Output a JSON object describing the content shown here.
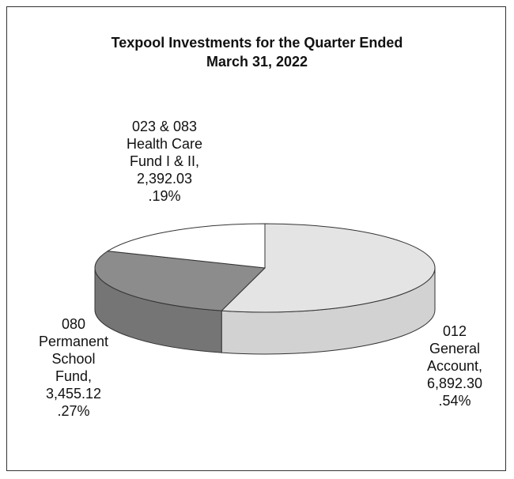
{
  "chart_data": {
    "type": "pie3d",
    "title": "Texpool Investments for the Quarter Ended",
    "subtitle": "March 31, 2022",
    "categories": [
      "012 General Account,",
      "080 Permanent School Fund,",
      "023 & 083 Health Care Fund I & II,"
    ],
    "values": [
      6892.3,
      3455.12,
      2392.03
    ],
    "value_labels": [
      "6,892.30",
      "3,455.12",
      "2,392.03"
    ],
    "percents": [
      0.54,
      0.27,
      0.19
    ],
    "percent_labels": [
      ".54%",
      ".27%",
      ".19%"
    ],
    "colors": [
      "#e4e4e4",
      "#8c8c8c",
      "#ffffff"
    ],
    "side_colors": [
      "#d2d2d2",
      "#757575",
      "#dddddd"
    ]
  }
}
